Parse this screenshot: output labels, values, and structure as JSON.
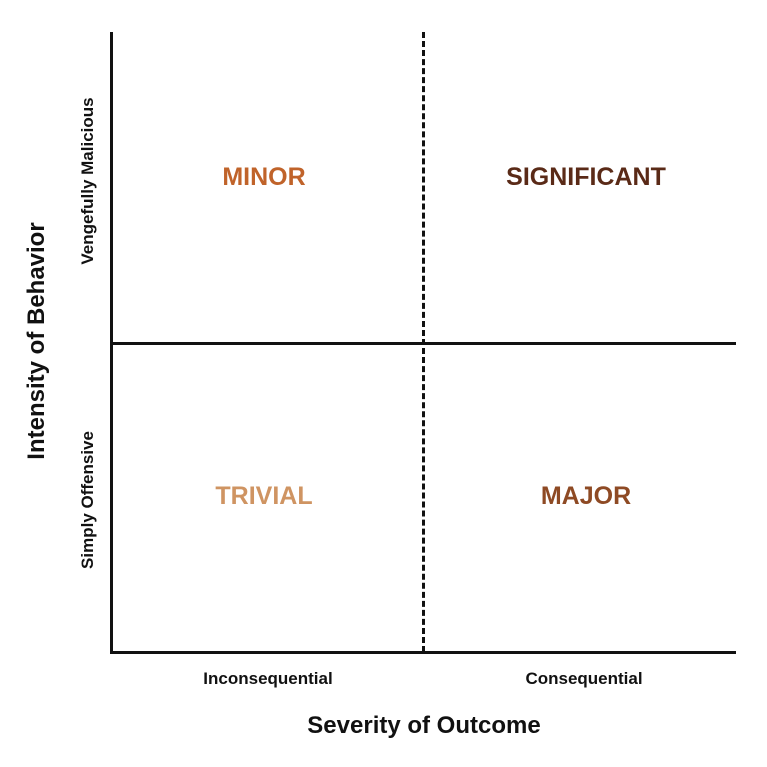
{
  "axes": {
    "x_title": "Severity of Outcome",
    "y_title": "Intensity of Behavior",
    "x_levels": [
      "Inconsequential",
      "Consequential"
    ],
    "y_levels": [
      "Vengefully Malicious",
      "Simply Offensive"
    ]
  },
  "quadrants": {
    "top_left": {
      "label": "MINOR",
      "color": "#c0632a"
    },
    "top_right": {
      "label": "SIGNIFICANT",
      "color": "#5a2a17"
    },
    "bottom_left": {
      "label": "TRIVIAL",
      "color": "#cf9462"
    },
    "bottom_right": {
      "label": "MAJOR",
      "color": "#8e4a24"
    }
  },
  "line_color": "#111111"
}
